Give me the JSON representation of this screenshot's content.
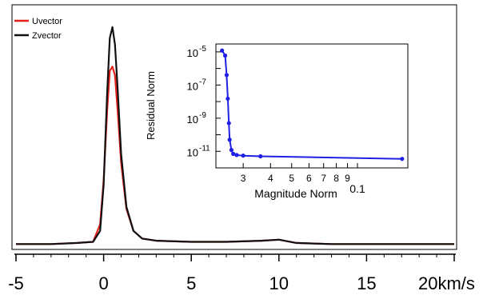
{
  "chart_data": [
    {
      "type": "line",
      "xlabel": "",
      "ylabel": "",
      "x_unit": "km/s",
      "xlim": [
        -5,
        20
      ],
      "ylim": [
        0,
        1.08
      ],
      "y_tick_labels_shown": false,
      "grid": false,
      "legend_position": "top-left",
      "x_ticks": [
        -5,
        0,
        5,
        10,
        15,
        20
      ],
      "x_tick_labels": [
        "-5",
        "0",
        "5",
        "10",
        "15",
        "20km/s"
      ],
      "series": [
        {
          "name": "Uvector",
          "color": "#e32019",
          "x": [
            -5,
            -3,
            -1.5,
            -0.6,
            -0.2,
            0.0,
            0.2,
            0.35,
            0.5,
            0.65,
            0.8,
            1.0,
            1.3,
            1.7,
            2.2,
            3,
            5,
            7,
            9,
            10,
            11,
            13,
            15,
            17,
            20
          ],
          "y": [
            0.01,
            0.01,
            0.015,
            0.02,
            0.1,
            0.3,
            0.62,
            0.8,
            0.82,
            0.78,
            0.62,
            0.38,
            0.17,
            0.07,
            0.035,
            0.025,
            0.02,
            0.02,
            0.025,
            0.03,
            0.015,
            0.01,
            0.01,
            0.01,
            0.01
          ]
        },
        {
          "name": "Zvector",
          "color": "#111111",
          "x": [
            -5,
            -3,
            -1.5,
            -0.6,
            -0.2,
            0.0,
            0.2,
            0.35,
            0.5,
            0.65,
            0.8,
            1.0,
            1.3,
            1.7,
            2.2,
            3,
            5,
            7,
            9,
            10,
            11,
            13,
            15,
            17,
            20
          ],
          "y": [
            0.01,
            0.01,
            0.015,
            0.02,
            0.07,
            0.28,
            0.7,
            0.95,
            1.0,
            0.92,
            0.72,
            0.42,
            0.18,
            0.07,
            0.035,
            0.025,
            0.02,
            0.02,
            0.025,
            0.03,
            0.015,
            0.01,
            0.01,
            0.01,
            0.01
          ]
        }
      ]
    },
    {
      "type": "line",
      "xlabel": "Magnitude Norm",
      "ylabel": "Residual Norm",
      "x_scale": "log",
      "y_scale": "log",
      "xlim": [
        0.0225,
        0.17
      ],
      "ylim": [
        1e-12,
        3e-05
      ],
      "x_ticks": [
        0.03,
        0.04,
        0.05,
        0.06,
        0.07,
        0.08,
        0.09,
        0.1
      ],
      "x_tick_labels": [
        "3",
        "4",
        "5",
        "6",
        "7",
        "8",
        "9",
        "0.1"
      ],
      "y_ticks_exp": [
        -5,
        -7,
        -9,
        -11
      ],
      "y_tick_base": "10",
      "y_tick_exponents": [
        "-5",
        "-7",
        "-9",
        "-11"
      ],
      "grid": false,
      "series": [
        {
          "name": "",
          "color": "#1f1fe6",
          "x": [
            0.024,
            0.0248,
            0.0252,
            0.0255,
            0.0258,
            0.026,
            0.0265,
            0.027,
            0.028,
            0.03,
            0.036,
            0.16
          ],
          "y": [
            1.2e-05,
            6e-06,
            4e-07,
            1.5e-08,
            5e-10,
            5e-11,
            1.2e-11,
            7e-12,
            6e-12,
            5.5e-12,
            5e-12,
            3.5e-12
          ]
        }
      ]
    }
  ]
}
